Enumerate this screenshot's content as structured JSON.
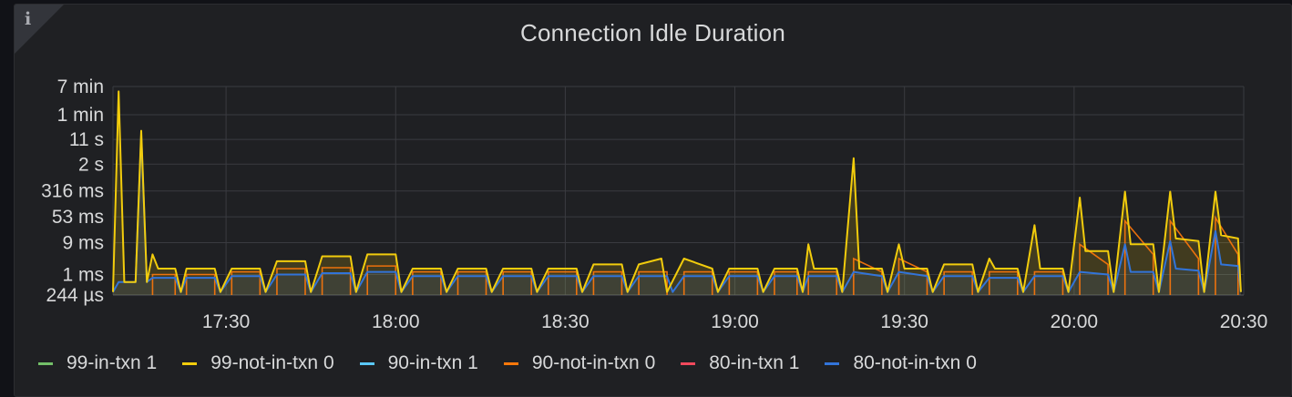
{
  "panel": {
    "title": "Connection Idle Duration",
    "info_icon": "info-icon"
  },
  "legend": [
    {
      "label": "99-in-txn 1",
      "color": "#73bf69"
    },
    {
      "label": "99-not-in-txn 0",
      "color": "#f2cc0c"
    },
    {
      "label": "90-in-txn 1",
      "color": "#5ac8fa"
    },
    {
      "label": "90-not-in-txn 0",
      "color": "#ff780a"
    },
    {
      "label": "80-in-txn 1",
      "color": "#f2495c"
    },
    {
      "label": "80-not-in-txn 0",
      "color": "#3274d9"
    }
  ],
  "chart_data": {
    "type": "area",
    "title": "Connection Idle Duration",
    "y_scale": "log",
    "y_tick_labels": [
      "7 min",
      "1 min",
      "11 s",
      "2 s",
      "316 ms",
      "53 ms",
      "9 ms",
      "1 ms",
      "244 µs"
    ],
    "y_tick_seconds": [
      420,
      60,
      11,
      2,
      0.316,
      0.053,
      0.009,
      0.001,
      0.000244
    ],
    "x_tick_labels": [
      "17:30",
      "18:00",
      "18:30",
      "19:00",
      "19:30",
      "20:00",
      "20:30"
    ],
    "x_range": [
      "17:10",
      "20:30"
    ],
    "grid": true,
    "legend_position": "bottom",
    "series": [
      {
        "name": "99-not-in-txn 0",
        "color": "#f2cc0c",
        "points": [
          [
            "17:10",
            0.0003
          ],
          [
            "17:11",
            300
          ],
          [
            "17:12",
            0.0006
          ],
          [
            "17:14",
            0.0006
          ],
          [
            "17:15",
            20
          ],
          [
            "17:16",
            0.0006
          ],
          [
            "17:17",
            0.004
          ],
          [
            "17:18",
            0.0015
          ],
          [
            "17:21",
            0.0015
          ],
          [
            "17:22",
            0.0003
          ],
          [
            "17:23",
            0.0015
          ],
          [
            "17:28",
            0.0015
          ],
          [
            "17:29",
            0.0003
          ],
          [
            "17:31",
            0.0015
          ],
          [
            "17:36",
            0.0015
          ],
          [
            "17:37",
            0.0003
          ],
          [
            "17:39",
            0.0025
          ],
          [
            "17:44",
            0.0025
          ],
          [
            "17:45",
            0.0003
          ],
          [
            "17:47",
            0.0035
          ],
          [
            "17:52",
            0.0035
          ],
          [
            "17:53",
            0.0003
          ],
          [
            "17:55",
            0.004
          ],
          [
            "18:00",
            0.004
          ],
          [
            "18:01",
            0.0003
          ],
          [
            "18:03",
            0.0015
          ],
          [
            "18:08",
            0.0015
          ],
          [
            "18:09",
            0.0003
          ],
          [
            "18:11",
            0.0015
          ],
          [
            "18:16",
            0.0015
          ],
          [
            "18:17",
            0.0003
          ],
          [
            "18:19",
            0.0015
          ],
          [
            "18:24",
            0.0015
          ],
          [
            "18:25",
            0.0003
          ],
          [
            "18:27",
            0.0015
          ],
          [
            "18:32",
            0.0015
          ],
          [
            "18:33",
            0.0003
          ],
          [
            "18:35",
            0.002
          ],
          [
            "18:40",
            0.002
          ],
          [
            "18:41",
            0.0003
          ],
          [
            "18:43",
            0.002
          ],
          [
            "18:47",
            0.003
          ],
          [
            "18:48",
            0.0003
          ],
          [
            "18:51",
            0.003
          ],
          [
            "18:56",
            0.0015
          ],
          [
            "18:57",
            0.0003
          ],
          [
            "18:59",
            0.0015
          ],
          [
            "19:04",
            0.0015
          ],
          [
            "19:05",
            0.0003
          ],
          [
            "19:07",
            0.0015
          ],
          [
            "19:11",
            0.0015
          ],
          [
            "19:12",
            0.0003
          ],
          [
            "19:13",
            0.008
          ],
          [
            "19:14",
            0.0015
          ],
          [
            "19:18",
            0.0015
          ],
          [
            "19:19",
            0.0003
          ],
          [
            "19:21",
            3
          ],
          [
            "19:22",
            0.0015
          ],
          [
            "19:26",
            0.0015
          ],
          [
            "19:27",
            0.0003
          ],
          [
            "19:29",
            0.008
          ],
          [
            "19:30",
            0.0015
          ],
          [
            "19:34",
            0.0015
          ],
          [
            "19:35",
            0.0003
          ],
          [
            "19:37",
            0.002
          ],
          [
            "19:42",
            0.002
          ],
          [
            "19:43",
            0.0003
          ],
          [
            "19:45",
            0.003
          ],
          [
            "19:46",
            0.0015
          ],
          [
            "19:50",
            0.0015
          ],
          [
            "19:51",
            0.0003
          ],
          [
            "19:53",
            0.03
          ],
          [
            "19:54",
            0.0015
          ],
          [
            "19:58",
            0.0015
          ],
          [
            "19:59",
            0.0003
          ],
          [
            "20:01",
            0.2
          ],
          [
            "20:02",
            0.005
          ],
          [
            "20:06",
            0.005
          ],
          [
            "20:07",
            0.0003
          ],
          [
            "20:09",
            0.3
          ],
          [
            "20:10",
            0.008
          ],
          [
            "20:14",
            0.008
          ],
          [
            "20:15",
            0.0003
          ],
          [
            "20:17",
            0.3
          ],
          [
            "20:18",
            0.012
          ],
          [
            "20:22",
            0.01
          ],
          [
            "20:23",
            0.0003
          ],
          [
            "20:25",
            0.3
          ],
          [
            "20:26",
            0.015
          ],
          [
            "20:29",
            0.012
          ],
          [
            "20:29.5",
            0.0003
          ]
        ]
      },
      {
        "name": "80-not-in-txn 0",
        "color": "#3274d9",
        "points": [
          [
            "17:10",
            0.0003
          ],
          [
            "17:11",
            0.0006
          ],
          [
            "17:14",
            0.0006
          ],
          [
            "17:15",
            15
          ],
          [
            "17:16",
            0.0006
          ],
          [
            "17:17",
            0.0008
          ],
          [
            "17:21",
            0.0008
          ],
          [
            "17:22",
            0.0003
          ],
          [
            "17:23",
            0.0008
          ],
          [
            "17:28",
            0.0008
          ],
          [
            "17:29",
            0.0003
          ],
          [
            "17:31",
            0.0009
          ],
          [
            "17:36",
            0.0009
          ],
          [
            "17:37",
            0.0003
          ],
          [
            "17:39",
            0.001
          ],
          [
            "17:44",
            0.001
          ],
          [
            "17:45",
            0.0003
          ],
          [
            "17:47",
            0.0011
          ],
          [
            "17:52",
            0.0011
          ],
          [
            "17:53",
            0.0003
          ],
          [
            "17:55",
            0.0012
          ],
          [
            "18:00",
            0.0012
          ],
          [
            "18:01",
            0.0003
          ],
          [
            "18:03",
            0.0009
          ],
          [
            "18:08",
            0.0009
          ],
          [
            "18:09",
            0.0003
          ],
          [
            "18:11",
            0.0009
          ],
          [
            "18:16",
            0.0009
          ],
          [
            "18:17",
            0.0003
          ],
          [
            "18:19",
            0.0009
          ],
          [
            "18:24",
            0.0009
          ],
          [
            "18:25",
            0.0003
          ],
          [
            "18:27",
            0.0009
          ],
          [
            "18:32",
            0.0009
          ],
          [
            "18:33",
            0.0003
          ],
          [
            "18:35",
            0.0009
          ],
          [
            "18:40",
            0.0009
          ],
          [
            "18:41",
            0.0003
          ],
          [
            "18:43",
            0.0009
          ],
          [
            "18:48",
            0.0009
          ],
          [
            "18:49",
            0.0003
          ],
          [
            "18:51",
            0.0009
          ],
          [
            "18:56",
            0.0009
          ],
          [
            "18:57",
            0.0003
          ],
          [
            "18:59",
            0.0009
          ],
          [
            "19:04",
            0.0009
          ],
          [
            "19:05",
            0.0003
          ],
          [
            "19:07",
            0.0009
          ],
          [
            "19:11",
            0.0009
          ],
          [
            "19:12",
            0.0003
          ],
          [
            "19:13",
            0.0009
          ],
          [
            "19:18",
            0.0009
          ],
          [
            "19:19",
            0.0003
          ],
          [
            "19:21",
            0.0012
          ],
          [
            "19:26",
            0.0009
          ],
          [
            "19:27",
            0.0003
          ],
          [
            "19:29",
            0.0012
          ],
          [
            "19:34",
            0.0009
          ],
          [
            "19:35",
            0.0003
          ],
          [
            "19:37",
            0.0009
          ],
          [
            "19:42",
            0.0009
          ],
          [
            "19:43",
            0.0003
          ],
          [
            "19:45",
            0.0008
          ],
          [
            "19:50",
            0.0008
          ],
          [
            "19:51",
            0.0003
          ],
          [
            "19:53",
            0.0009
          ],
          [
            "19:58",
            0.0009
          ],
          [
            "19:59",
            0.0003
          ],
          [
            "20:01",
            0.0012
          ],
          [
            "20:06",
            0.001
          ],
          [
            "20:07",
            0.0003
          ],
          [
            "20:09",
            0.008
          ],
          [
            "20:10",
            0.0012
          ],
          [
            "20:14",
            0.0012
          ],
          [
            "20:15",
            0.0003
          ],
          [
            "20:17",
            0.01
          ],
          [
            "20:18",
            0.0015
          ],
          [
            "20:22",
            0.0013
          ],
          [
            "20:23",
            0.0003
          ],
          [
            "20:25",
            0.02
          ],
          [
            "20:26",
            0.002
          ],
          [
            "20:29",
            0.0018
          ],
          [
            "20:29.5",
            0.0003
          ]
        ]
      },
      {
        "name": "90-not-in-txn 0",
        "color": "#ff780a",
        "points": [
          [
            "17:17",
            0.001
          ],
          [
            "17:21",
            0.001
          ],
          [
            "17:23",
            0.001
          ],
          [
            "17:28",
            0.001
          ],
          [
            "17:31",
            0.0012
          ],
          [
            "17:36",
            0.0012
          ],
          [
            "17:39",
            0.0015
          ],
          [
            "17:44",
            0.0015
          ],
          [
            "17:47",
            0.0016
          ],
          [
            "17:52",
            0.0016
          ],
          [
            "17:55",
            0.0018
          ],
          [
            "18:00",
            0.0018
          ],
          [
            "18:03",
            0.0012
          ],
          [
            "18:08",
            0.0012
          ],
          [
            "18:11",
            0.0012
          ],
          [
            "18:16",
            0.0012
          ],
          [
            "18:19",
            0.0012
          ],
          [
            "18:24",
            0.0012
          ],
          [
            "18:27",
            0.0012
          ],
          [
            "18:32",
            0.0012
          ],
          [
            "18:35",
            0.0012
          ],
          [
            "18:40",
            0.0012
          ],
          [
            "18:43",
            0.0012
          ],
          [
            "18:48",
            0.0012
          ],
          [
            "18:51",
            0.0012
          ],
          [
            "18:56",
            0.0012
          ],
          [
            "18:59",
            0.0012
          ],
          [
            "19:04",
            0.0012
          ],
          [
            "19:07",
            0.0012
          ],
          [
            "19:11",
            0.0012
          ],
          [
            "19:13",
            0.0012
          ],
          [
            "19:18",
            0.0012
          ],
          [
            "19:21",
            0.003
          ],
          [
            "19:26",
            0.0012
          ],
          [
            "19:29",
            0.003
          ],
          [
            "19:34",
            0.0012
          ],
          [
            "19:37",
            0.0012
          ],
          [
            "19:42",
            0.0012
          ],
          [
            "19:45",
            0.0012
          ],
          [
            "19:50",
            0.0012
          ],
          [
            "19:53",
            0.0012
          ],
          [
            "19:58",
            0.0012
          ],
          [
            "20:01",
            0.008
          ],
          [
            "20:06",
            0.002
          ],
          [
            "20:09",
            0.04
          ],
          [
            "20:14",
            0.004
          ],
          [
            "20:17",
            0.04
          ],
          [
            "20:22",
            0.003
          ],
          [
            "20:25",
            0.05
          ],
          [
            "20:29",
            0.004
          ]
        ]
      }
    ]
  }
}
